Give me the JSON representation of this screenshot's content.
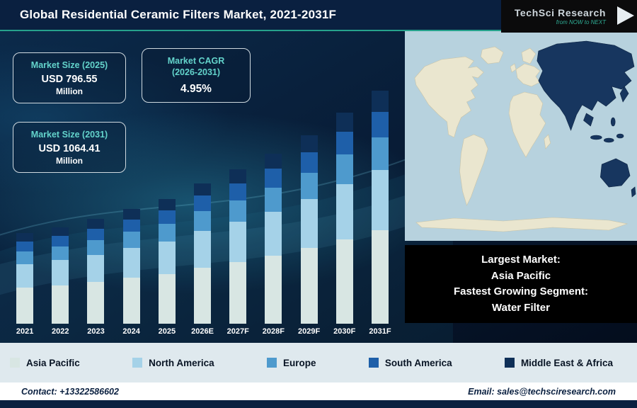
{
  "header": {
    "title": "Global Residential Ceramic Filters Market, 2021-2031F",
    "logo": {
      "name": "TechSci Research",
      "tagline": "from NOW to NEXT"
    }
  },
  "stats": [
    {
      "label": "Market Size (2025)",
      "value": "USD 796.55",
      "unit": "Million"
    },
    {
      "label": "Market CAGR",
      "sublabel": "(2026-2031)",
      "value": "4.95%"
    },
    {
      "label": "Market Size (2031)",
      "value": "USD 1064.41",
      "unit": "Million"
    }
  ],
  "note": {
    "line1": "Largest Market:",
    "line2": "Asia Pacific",
    "line3": "Fastest Growing Segment:",
    "line4": "Water Filter"
  },
  "footer": {
    "contact": "Contact: +13322586602",
    "email": "Email: sales@techsciresearch.com"
  },
  "colors": {
    "accent_teal": "#26a28c",
    "header_navy": "#0a2040",
    "legend_bg": "#dfe9ee",
    "highlight_region": "#17365f"
  },
  "chart_data": {
    "type": "bar",
    "stacked": true,
    "title": "Global Residential Ceramic Filters Market, 2021-2031F (USD Million)",
    "categories": [
      "2021",
      "2022",
      "2023",
      "2024",
      "2025",
      "2026E",
      "2027F",
      "2028F",
      "2029F",
      "2030F",
      "2031F"
    ],
    "series": [
      {
        "name": "Asia Pacific",
        "color": "#d8e6e3",
        "values": [
          284.8,
          290.4,
          298.8,
          308.8,
          318.6,
          334.4,
          348.0,
          363.6,
          382.0,
          404.4,
          425.8
        ]
      },
      {
        "name": "North America",
        "color": "#a5d2e8",
        "values": [
          185.1,
          188.8,
          194.2,
          200.7,
          207.1,
          217.4,
          226.2,
          236.3,
          248.3,
          262.9,
          276.7
        ]
      },
      {
        "name": "Europe",
        "color": "#4e9acd",
        "values": [
          99.7,
          101.6,
          104.6,
          108.1,
          111.5,
          117.0,
          121.8,
          127.3,
          133.7,
          141.5,
          149.0
        ]
      },
      {
        "name": "South America",
        "color": "#1e5fa9",
        "values": [
          78.3,
          79.9,
          82.2,
          84.9,
          87.6,
          92.0,
          95.7,
          100.0,
          105.1,
          111.2,
          117.1
        ]
      },
      {
        "name": "Middle East & Africa",
        "color": "#0e2f57",
        "values": [
          64.1,
          65.3,
          67.2,
          69.5,
          71.7,
          75.2,
          78.3,
          81.8,
          86.0,
          91.0,
          95.8
        ]
      }
    ],
    "labeled_totals_usd_million": {
      "2025": 796.55,
      "2031": 1064.41
    },
    "cagr_2026_2031": "4.95%",
    "ylim": [
      488,
      1070
    ],
    "grid": false,
    "legend_position": "bottom"
  }
}
